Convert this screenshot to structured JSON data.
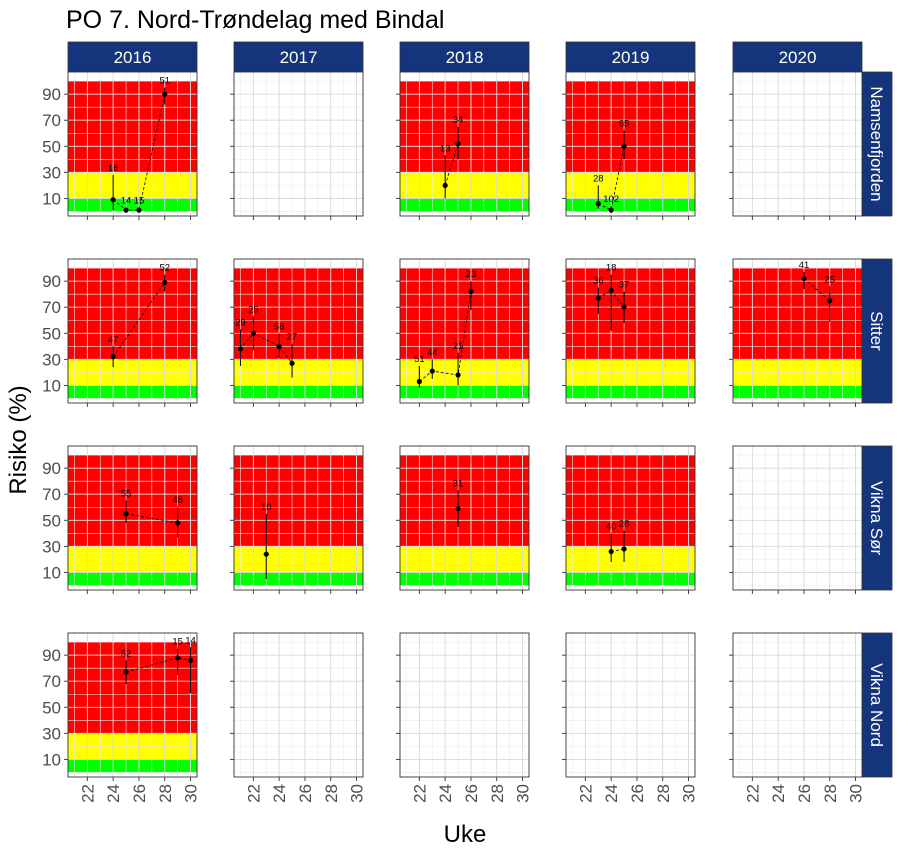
{
  "chart_data": {
    "type": "scatter",
    "title": "PO 7. Nord-Trøndelag med Bindal",
    "xlabel": "Uke",
    "ylabel": "Risiko (%)",
    "xlim": [
      20.5,
      30.5
    ],
    "ylim": [
      -3.5,
      107
    ],
    "x_ticks": [
      22,
      24,
      26,
      28,
      30
    ],
    "y_ticks": [
      10,
      30,
      50,
      70,
      90
    ],
    "years": [
      "2016",
      "2017",
      "2018",
      "2019",
      "2020"
    ],
    "locations": [
      "Namsenfjorden",
      "Sitter",
      "Vikna Sør",
      "Vikna Nord"
    ],
    "risk_bands": [
      {
        "from": 0,
        "to": 10,
        "color": "#00ff00"
      },
      {
        "from": 10,
        "to": 30,
        "color": "#ffff00"
      },
      {
        "from": 30,
        "to": 100,
        "color": "#ff0000"
      }
    ],
    "strip_color": "#14347c",
    "grid": true,
    "panels": [
      {
        "location": "Namsenfjorden",
        "year": "2016",
        "points": [
          {
            "x": 24,
            "y": 9,
            "lo": 1,
            "hi": 28,
            "n": "16"
          },
          {
            "x": 25,
            "y": 1,
            "lo": 0,
            "hi": 3,
            "n": "14"
          },
          {
            "x": 26,
            "y": 1,
            "lo": 0,
            "hi": 3,
            "n": "15"
          },
          {
            "x": 28,
            "y": 90,
            "lo": 82,
            "hi": 95,
            "n": "51"
          }
        ]
      },
      {
        "location": "Namsenfjorden",
        "year": "2018",
        "points": [
          {
            "x": 24,
            "y": 20,
            "lo": 10,
            "hi": 43,
            "n": "13"
          },
          {
            "x": 25,
            "y": 52,
            "lo": 40,
            "hi": 65,
            "n": "34"
          }
        ]
      },
      {
        "location": "Namsenfjorden",
        "year": "2019",
        "points": [
          {
            "x": 23,
            "y": 6,
            "lo": 2,
            "hi": 20,
            "n": "28"
          },
          {
            "x": 24,
            "y": 1,
            "lo": 0,
            "hi": 4,
            "n": "102"
          },
          {
            "x": 25,
            "y": 50,
            "lo": 40,
            "hi": 62,
            "n": "65"
          }
        ]
      },
      {
        "location": "Sitter",
        "year": "2016",
        "points": [
          {
            "x": 24,
            "y": 32,
            "lo": 24,
            "hi": 40,
            "n": "47"
          },
          {
            "x": 28,
            "y": 89,
            "lo": 82,
            "hi": 95,
            "n": "52"
          }
        ]
      },
      {
        "location": "Sitter",
        "year": "2017",
        "points": [
          {
            "x": 21,
            "y": 38,
            "lo": 25,
            "hi": 53,
            "n": "29"
          },
          {
            "x": 22,
            "y": 50,
            "lo": 37,
            "hi": 63,
            "n": "25"
          },
          {
            "x": 24,
            "y": 40,
            "lo": 31,
            "hi": 50,
            "n": "58"
          },
          {
            "x": 25,
            "y": 27,
            "lo": 16,
            "hi": 42,
            "n": "27"
          }
        ]
      },
      {
        "location": "Sitter",
        "year": "2018",
        "points": [
          {
            "x": 22,
            "y": 13,
            "lo": 8,
            "hi": 25,
            "n": "51"
          },
          {
            "x": 23,
            "y": 21,
            "lo": 15,
            "hi": 30,
            "n": "44"
          },
          {
            "x": 25,
            "y": 18,
            "lo": 10,
            "hi": 35,
            "n": "21"
          },
          {
            "x": 26,
            "y": 82,
            "lo": 68,
            "hi": 90,
            "n": "23"
          }
        ]
      },
      {
        "location": "Sitter",
        "year": "2019",
        "points": [
          {
            "x": 23,
            "y": 77,
            "lo": 65,
            "hi": 85,
            "n": "36"
          },
          {
            "x": 24,
            "y": 83,
            "lo": 52,
            "hi": 95,
            "n": "18"
          },
          {
            "x": 25,
            "y": 70,
            "lo": 58,
            "hi": 82,
            "n": "37"
          }
        ]
      },
      {
        "location": "Sitter",
        "year": "2020",
        "points": [
          {
            "x": 26,
            "y": 92,
            "lo": 84,
            "hi": 97,
            "n": "41"
          },
          {
            "x": 28,
            "y": 75,
            "lo": 59,
            "hi": 86,
            "n": "25"
          }
        ]
      },
      {
        "location": "Vikna Sør",
        "year": "2016",
        "points": [
          {
            "x": 25,
            "y": 55,
            "lo": 48,
            "hi": 65,
            "n": "55"
          },
          {
            "x": 29,
            "y": 48,
            "lo": 37,
            "hi": 60,
            "n": "48"
          }
        ]
      },
      {
        "location": "Vikna Sør",
        "year": "2017",
        "points": [
          {
            "x": 23,
            "y": 24,
            "lo": 5,
            "hi": 55,
            "n": "10"
          }
        ]
      },
      {
        "location": "Vikna Sør",
        "year": "2018",
        "points": [
          {
            "x": 25,
            "y": 59,
            "lo": 45,
            "hi": 73,
            "n": "31"
          }
        ]
      },
      {
        "location": "Vikna Sør",
        "year": "2019",
        "points": [
          {
            "x": 24,
            "y": 26,
            "lo": 18,
            "hi": 40,
            "n": "40"
          },
          {
            "x": 25,
            "y": 28,
            "lo": 18,
            "hi": 42,
            "n": "28"
          }
        ]
      },
      {
        "location": "Vikna Nord",
        "year": "2016",
        "points": [
          {
            "x": 25,
            "y": 77,
            "lo": 68,
            "hi": 86,
            "n": "52"
          },
          {
            "x": 29,
            "y": 88,
            "lo": 75,
            "hi": 95,
            "n": "15"
          },
          {
            "x": 30,
            "y": 86,
            "lo": 61,
            "hi": 96,
            "n": "14"
          }
        ]
      }
    ]
  }
}
